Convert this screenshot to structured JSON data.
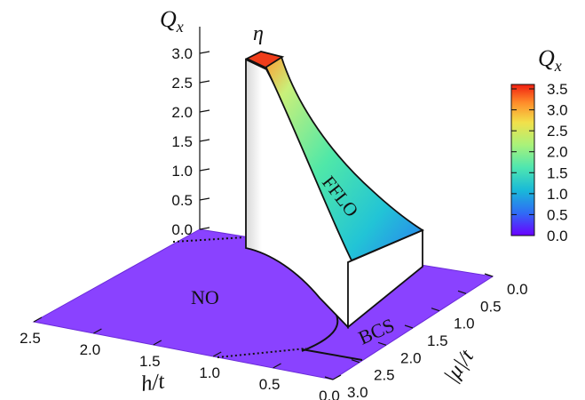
{
  "chart_data": {
    "type": "surface3d",
    "z_axis": {
      "label": "Q_x",
      "ticks": [
        "0.0",
        "0.5",
        "1.0",
        "1.5",
        "2.0",
        "2.5",
        "3.0"
      ],
      "range": [
        0,
        3.0
      ]
    },
    "h_axis": {
      "label": "h/t",
      "ticks": [
        "2.5",
        "2.0",
        "1.5",
        "1.0",
        "0.5",
        "0.0"
      ],
      "range": [
        0,
        2.5
      ]
    },
    "mu_axis": {
      "label": "|μ|/t",
      "ticks": [
        "0.0",
        "0.5",
        "1.0",
        "1.5",
        "2.0",
        "2.5",
        "3.0"
      ],
      "range": [
        0,
        3.0
      ]
    },
    "colorbar": {
      "label": "Q_x",
      "ticks": [
        "3.5",
        "3.0",
        "2.5",
        "2.0",
        "1.5",
        "1.0",
        "0.5",
        "0.0"
      ],
      "range": [
        0,
        3.5
      ],
      "colors": [
        "#6a00ff",
        "#2f6cf5",
        "#19b9d8",
        "#4ee6b0",
        "#a9f27a",
        "#f2e04a",
        "#ff8c2a",
        "#f01e10"
      ]
    },
    "regions": [
      "NO",
      "BCS",
      "FFLO"
    ],
    "annotation": "η",
    "surface_profile": [
      {
        "mu": 0.0,
        "qx": 3.0
      },
      {
        "mu": 0.5,
        "qx": 2.2
      },
      {
        "mu": 1.0,
        "qx": 1.5
      },
      {
        "mu": 1.5,
        "qx": 0.9
      },
      {
        "mu": 2.0,
        "qx": 0.5
      },
      {
        "mu": 2.5,
        "qx": 0.2
      }
    ]
  }
}
